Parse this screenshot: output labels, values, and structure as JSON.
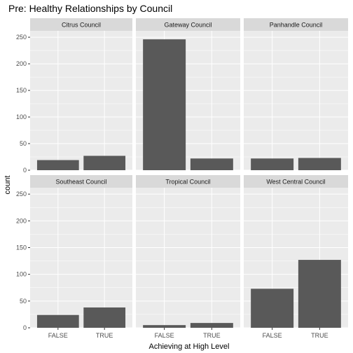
{
  "chart_data": {
    "type": "bar",
    "title": "Pre: Healthy Relationships by Council",
    "xlabel": "Achieving at High Level",
    "ylabel": "count",
    "categories": [
      "FALSE",
      "TRUE"
    ],
    "ylim": [
      0,
      262
    ],
    "yticks": [
      0,
      50,
      100,
      150,
      200,
      250
    ],
    "grid": true,
    "facet_layout": "2 rows x 3 columns",
    "colors": {
      "bar": "#595959",
      "panel_bg": "#ebebeb",
      "strip_bg": "#d9d9d9",
      "grid": "#ffffff"
    },
    "facets": [
      {
        "name": "Citrus Council",
        "values": [
          19,
          27
        ]
      },
      {
        "name": "Gateway Council",
        "values": [
          246,
          22
        ]
      },
      {
        "name": "Panhandle Council",
        "values": [
          22,
          23
        ]
      },
      {
        "name": "Southeast Council",
        "values": [
          24,
          38
        ]
      },
      {
        "name": "Tropical Council",
        "values": [
          5,
          9
        ]
      },
      {
        "name": "West Central Council",
        "values": [
          73,
          127
        ]
      }
    ]
  }
}
